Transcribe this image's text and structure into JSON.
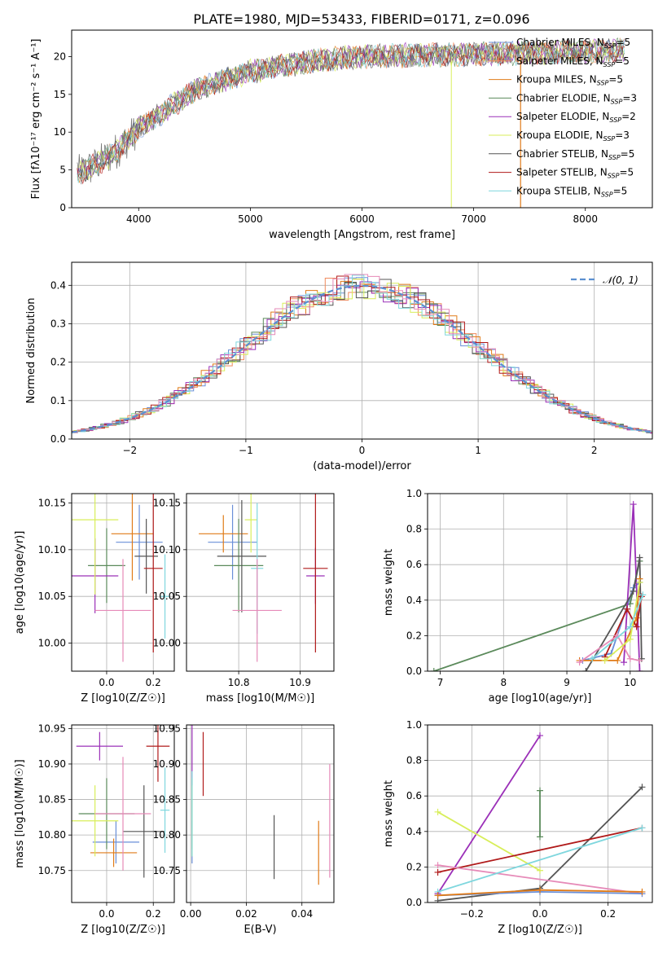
{
  "figure_title": "PLATE=1980, MJD=53433, FIBERID=0171, z=0.096",
  "colors": {
    "chabrier_miles": "#6a8fd8",
    "salpeter_miles": "#f08a5d",
    "kroupa_miles": "#e07b18",
    "chabrier_elodie": "#5b8a5b",
    "salpeter_elodie": "#9b30b8",
    "kroupa_elodie": "#d8ee5a",
    "chabrier_stelib": "#555555",
    "salpeter_stelib": "#b01a1a",
    "kroupa_stelib": "#7fd7de",
    "pink": "#e68ab8"
  },
  "legend_spectrum": [
    {
      "label": "Chabrier MILES, N",
      "sub": "SSP",
      "tail": "=5",
      "color": "#6a8fd8"
    },
    {
      "label": "Salpeter MILES, N",
      "sub": "SSP",
      "tail": "=5",
      "color": "#f08a5d"
    },
    {
      "label": "Kroupa MILES, N",
      "sub": "SSP",
      "tail": "=5",
      "color": "#e07b18"
    },
    {
      "label": "Chabrier ELODIE, N",
      "sub": "SSP",
      "tail": "=3",
      "color": "#5b8a5b"
    },
    {
      "label": "Salpeter ELODIE, N",
      "sub": "SSP",
      "tail": "=2",
      "color": "#9b30b8"
    },
    {
      "label": "Kroupa ELODIE, N",
      "sub": "SSP",
      "tail": "=3",
      "color": "#d8ee5a"
    },
    {
      "label": "Chabrier STELIB, N",
      "sub": "SSP",
      "tail": "=5",
      "color": "#555555"
    },
    {
      "label": "Salpeter STELIB, N",
      "sub": "SSP",
      "tail": "=5",
      "color": "#b01a1a"
    },
    {
      "label": "Kroupa STELIB, N",
      "sub": "SSP",
      "tail": "=5",
      "color": "#7fd7de"
    }
  ],
  "chart_data": [
    {
      "id": "spectrum",
      "type": "line",
      "xlabel": "wavelength [Angstrom, rest frame]",
      "ylabel": "Flux [fλ10⁻¹⁷ erg cm⁻² s⁻¹ A⁻¹]",
      "xlim": [
        3400,
        8600
      ],
      "ylim": [
        0,
        23.5
      ],
      "xticks": [
        4000,
        5000,
        6000,
        7000,
        8000
      ],
      "yticks": [
        0,
        5,
        10,
        15,
        20
      ],
      "continuum_x": [
        3450,
        3600,
        3800,
        4000,
        4200,
        4500,
        4800,
        5000,
        5300,
        5600,
        6000,
        6500,
        7000,
        7500,
        8000,
        8300
      ],
      "continuum_y": [
        4.5,
        5.5,
        7.5,
        10.5,
        12.5,
        15.5,
        17,
        18,
        18.8,
        19.5,
        20,
        20.2,
        20.3,
        20.5,
        20.7,
        20.8
      ]
    },
    {
      "id": "residuals",
      "type": "line",
      "xlabel": "(data-model)/error",
      "ylabel": "Normed distribution",
      "xlim": [
        -2.5,
        2.5
      ],
      "ylim": [
        0,
        0.46
      ],
      "xticks": [
        -2,
        -1,
        0,
        1,
        2
      ],
      "yticks": [
        0.0,
        0.1,
        0.2,
        0.3,
        0.4
      ],
      "legend": "𝒩(0, 1)"
    },
    {
      "id": "age_vs_Z",
      "type": "scatter",
      "xlabel": "Z [log10(Z/Z☉)]",
      "ylabel": "age  [log10(age/yr)]",
      "xlim": [
        -0.15,
        0.29
      ],
      "ylim": [
        9.97,
        10.16
      ],
      "xticks": [
        0.0,
        0.2
      ],
      "yticks": [
        10.0,
        10.05,
        10.1,
        10.15
      ],
      "points": [
        {
          "x": 0.14,
          "y": 10.108,
          "xerr": 0.1,
          "yerr": 0.04,
          "color": "#6a8fd8"
        },
        {
          "x": 0.11,
          "y": 10.117,
          "xerr": 0.09,
          "yerr": 0.05,
          "color": "#e07b18"
        },
        {
          "x": 0.0,
          "y": 10.083,
          "xerr": 0.08,
          "yerr": 0.04,
          "color": "#5b8a5b"
        },
        {
          "x": -0.05,
          "y": 10.072,
          "xerr": 0.1,
          "yerr": 0.04,
          "color": "#9b30b8"
        },
        {
          "x": -0.05,
          "y": 10.132,
          "xerr": 0.1,
          "yerr": 0.08,
          "color": "#d8ee5a"
        },
        {
          "x": 0.17,
          "y": 10.093,
          "xerr": 0.05,
          "yerr": 0.04,
          "color": "#555555"
        },
        {
          "x": 0.2,
          "y": 10.08,
          "xerr": 0.04,
          "yerr": 0.09,
          "color": "#b01a1a"
        },
        {
          "x": 0.25,
          "y": 10.05,
          "xerr": 0.02,
          "yerr": 0.045,
          "color": "#7fd7de"
        },
        {
          "x": 0.07,
          "y": 10.035,
          "xerr": 0.12,
          "yerr": 0.055,
          "color": "#e68ab8"
        }
      ]
    },
    {
      "id": "age_vs_mass",
      "type": "scatter",
      "xlabel": "mass [log10(M/M☉)]",
      "ylabel": "",
      "xlim": [
        10.715,
        10.955
      ],
      "ylim": [
        9.97,
        10.16
      ],
      "xticks": [
        10.8,
        10.9
      ],
      "yticks": [
        10.0,
        10.05,
        10.1,
        10.15
      ],
      "points": [
        {
          "x": 10.79,
          "y": 10.108,
          "xerr": 0.04,
          "yerr": 0.04,
          "color": "#6a8fd8"
        },
        {
          "x": 10.775,
          "y": 10.117,
          "xerr": 0.04,
          "yerr": 0.02,
          "color": "#e07b18"
        },
        {
          "x": 10.8,
          "y": 10.083,
          "xerr": 0.04,
          "yerr": 0.05,
          "color": "#5b8a5b"
        },
        {
          "x": 10.925,
          "y": 10.072,
          "xerr": 0.015,
          "yerr": 0.03,
          "color": "#9b30b8"
        },
        {
          "x": 10.82,
          "y": 10.132,
          "xerr": 0.01,
          "yerr": 0.035,
          "color": "#d8ee5a"
        },
        {
          "x": 10.805,
          "y": 10.093,
          "xerr": 0.04,
          "yerr": 0.06,
          "color": "#555555"
        },
        {
          "x": 10.925,
          "y": 10.08,
          "xerr": 0.02,
          "yerr": 0.09,
          "color": "#b01a1a"
        },
        {
          "x": 10.83,
          "y": 10.08,
          "xerr": 0.01,
          "yerr": 0.07,
          "color": "#7fd7de"
        },
        {
          "x": 10.83,
          "y": 10.035,
          "xerr": 0.04,
          "yerr": 0.055,
          "color": "#e68ab8"
        }
      ]
    },
    {
      "id": "massweight_vs_age",
      "type": "line",
      "xlabel": "age  [log10(age/yr)]",
      "ylabel": "mass weight",
      "xlim": [
        6.8,
        10.35
      ],
      "ylim": [
        0,
        1.0
      ],
      "xticks": [
        7,
        8,
        9,
        10
      ],
      "yticks": [
        0.0,
        0.2,
        0.4,
        0.6,
        0.8,
        1.0
      ],
      "series": [
        {
          "color": "#5b8a5b",
          "x": [
            6.9,
            10.0,
            10.15
          ],
          "y": [
            0.0,
            0.38,
            0.62
          ]
        },
        {
          "color": "#6a8fd8",
          "x": [
            9.25,
            9.7,
            10.05,
            10.15
          ],
          "y": [
            0.06,
            0.1,
            0.47,
            0.5
          ]
        },
        {
          "color": "#9b30b8",
          "x": [
            9.9,
            10.05,
            10.15
          ],
          "y": [
            0.05,
            0.94,
            0.0
          ]
        },
        {
          "color": "#555555",
          "x": [
            9.3,
            10.05,
            10.15,
            10.18
          ],
          "y": [
            0.0,
            0.45,
            0.64,
            0.07
          ]
        },
        {
          "color": "#e07b18",
          "x": [
            9.2,
            9.8,
            10.1,
            10.15
          ],
          "y": [
            0.06,
            0.06,
            0.3,
            0.52
          ]
        },
        {
          "color": "#b01a1a",
          "x": [
            9.6,
            9.95,
            10.1,
            10.18
          ],
          "y": [
            0.08,
            0.35,
            0.25,
            0.42
          ]
        },
        {
          "color": "#e68ab8",
          "x": [
            9.2,
            9.8,
            10.0,
            10.15
          ],
          "y": [
            0.05,
            0.2,
            0.07,
            0.06
          ]
        },
        {
          "color": "#d8ee5a",
          "x": [
            9.6,
            10.0,
            10.15
          ],
          "y": [
            0.06,
            0.18,
            0.5
          ]
        },
        {
          "color": "#7fd7de",
          "x": [
            9.4,
            10.0,
            10.2
          ],
          "y": [
            0.07,
            0.25,
            0.43
          ]
        }
      ]
    },
    {
      "id": "mass_vs_Z",
      "type": "scatter",
      "xlabel": "Z [log10(Z/Z☉)]",
      "ylabel": "mass [log10(M/M☉)]",
      "xlim": [
        -0.15,
        0.29
      ],
      "ylim": [
        10.705,
        10.955
      ],
      "xticks": [
        0.0,
        0.2
      ],
      "yticks": [
        10.75,
        10.8,
        10.85,
        10.9,
        10.95
      ],
      "points": [
        {
          "x": 0.04,
          "y": 10.79,
          "xerr": 0.1,
          "yerr": 0.03,
          "color": "#6a8fd8"
        },
        {
          "x": 0.03,
          "y": 10.775,
          "xerr": 0.1,
          "yerr": 0.02,
          "color": "#e07b18"
        },
        {
          "x": 0.0,
          "y": 10.83,
          "xerr": 0.12,
          "yerr": 0.05,
          "color": "#5b8a5b"
        },
        {
          "x": -0.03,
          "y": 10.925,
          "xerr": 0.1,
          "yerr": 0.02,
          "color": "#9b30b8"
        },
        {
          "x": -0.05,
          "y": 10.82,
          "xerr": 0.1,
          "yerr": 0.05,
          "color": "#d8ee5a"
        },
        {
          "x": 0.16,
          "y": 10.805,
          "xerr": 0.09,
          "yerr": 0.065,
          "color": "#555555"
        },
        {
          "x": 0.22,
          "y": 10.925,
          "xerr": 0.05,
          "yerr": 0.05,
          "color": "#b01a1a"
        },
        {
          "x": 0.25,
          "y": 10.835,
          "xerr": 0.02,
          "yerr": 0.06,
          "color": "#7fd7de"
        },
        {
          "x": 0.07,
          "y": 10.83,
          "xerr": 0.12,
          "yerr": 0.08,
          "color": "#e68ab8"
        }
      ]
    },
    {
      "id": "mass_vs_EBV",
      "type": "scatter",
      "xlabel": "E(B-V)",
      "ylabel": "",
      "xlim": [
        -0.0015,
        0.0515
      ],
      "ylim": [
        10.705,
        10.955
      ],
      "xticks": [
        0.0,
        0.02,
        0.04
      ],
      "yticks": [
        10.75,
        10.8,
        10.85,
        10.9,
        10.95
      ],
      "points": [
        {
          "x": 0.0005,
          "y": 10.79,
          "xerr": 0.0,
          "yerr": 0.03,
          "color": "#6a8fd8"
        },
        {
          "x": 0.046,
          "y": 10.775,
          "xerr": 0.0,
          "yerr": 0.045,
          "color": "#e07b18"
        },
        {
          "x": 0.0005,
          "y": 10.83,
          "xerr": 0.0,
          "yerr": 0.05,
          "color": "#5b8a5b"
        },
        {
          "x": 0.0005,
          "y": 10.925,
          "xerr": 0.0,
          "yerr": 0.045,
          "color": "#9b30b8"
        },
        {
          "x": 0.0005,
          "y": 10.82,
          "xerr": 0.0,
          "yerr": 0.05,
          "color": "#d8ee5a"
        },
        {
          "x": 0.03,
          "y": 10.783,
          "xerr": 0.0,
          "yerr": 0.045,
          "color": "#555555"
        },
        {
          "x": 0.0045,
          "y": 10.9,
          "xerr": 0.0,
          "yerr": 0.045,
          "color": "#b01a1a"
        },
        {
          "x": 0.0005,
          "y": 10.83,
          "xerr": 0.0,
          "yerr": 0.06,
          "color": "#7fd7de"
        },
        {
          "x": 0.05,
          "y": 10.82,
          "xerr": 0.0,
          "yerr": 0.08,
          "color": "#e68ab8"
        }
      ]
    },
    {
      "id": "massweight_vs_Z",
      "type": "line",
      "xlabel": "Z [log10(Z/Z☉)]",
      "ylabel": "mass weight",
      "xlim": [
        -0.33,
        0.33
      ],
      "ylim": [
        0,
        1.0
      ],
      "xticks": [
        -0.2,
        0.0,
        0.2
      ],
      "yticks": [
        0.0,
        0.2,
        0.4,
        0.6,
        0.8,
        1.0
      ],
      "series": [
        {
          "color": "#9b30b8",
          "x": [
            -0.3,
            0.0
          ],
          "y": [
            0.05,
            0.94
          ]
        },
        {
          "color": "#d8ee5a",
          "x": [
            -0.3,
            0.0
          ],
          "y": [
            0.51,
            0.18
          ]
        },
        {
          "color": "#555555",
          "x": [
            -0.3,
            0.0,
            0.3
          ],
          "y": [
            0.01,
            0.08,
            0.65
          ]
        },
        {
          "color": "#b01a1a",
          "x": [
            -0.3,
            0.3
          ],
          "y": [
            0.17,
            0.42
          ]
        },
        {
          "color": "#e68ab8",
          "x": [
            -0.3,
            0.3
          ],
          "y": [
            0.21,
            0.05
          ]
        },
        {
          "color": "#7fd7de",
          "x": [
            -0.3,
            0.3
          ],
          "y": [
            0.06,
            0.42
          ]
        },
        {
          "color": "#6a8fd8",
          "x": [
            -0.3,
            0.0,
            0.3
          ],
          "y": [
            0.04,
            0.06,
            0.05
          ]
        },
        {
          "color": "#e07b18",
          "x": [
            -0.3,
            0.0,
            0.3
          ],
          "y": [
            0.04,
            0.07,
            0.06
          ]
        },
        {
          "color": "#5b8a5b",
          "x": [
            0.0,
            0.0
          ],
          "y": [
            0.37,
            0.63
          ]
        }
      ]
    }
  ]
}
